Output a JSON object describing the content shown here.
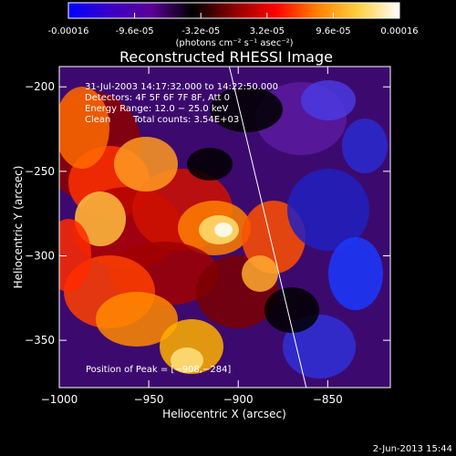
{
  "colorbar": {
    "ticks": [
      "-0.00016",
      "-9.6e-05",
      "-3.2e-05",
      "3.2e-05",
      "9.6e-05",
      "0.00016"
    ],
    "min": -0.00016,
    "max": 0.00016,
    "units": "(photons cm⁻² s⁻¹ asec⁻²)",
    "palette": [
      "#0000ff",
      "#3a00c8",
      "#5a0096",
      "#000000",
      "#8c0000",
      "#ff0000",
      "#ff7f00",
      "#ffd040",
      "#ffffff"
    ]
  },
  "chart_data": {
    "type": "heatmap",
    "title": "Reconstructed RHESSI Image",
    "xlabel": "Heliocentric X (arcsec)",
    "ylabel": "Heliocentric Y (arcsec)",
    "xlim": [
      -1000,
      -815
    ],
    "ylim": [
      -378,
      -188
    ],
    "xticks": [
      -1000,
      -950,
      -900,
      -850
    ],
    "yticks": [
      -200,
      -250,
      -300,
      -350
    ],
    "xtick_labels": [
      "−1000",
      "−950",
      "−900",
      "−850"
    ],
    "ytick_labels": [
      "−200",
      "−250",
      "−300",
      "−350"
    ],
    "annotations": {
      "time_range": "31-Jul-2003 14:17:32.000 to 14:22:50.000",
      "detectors": "Detectors: 4F 5F 6F 7F 8F, Att 0",
      "energy": "Energy Range: 12.0 − 25.0 keV",
      "method": "Clean",
      "counts": "Total counts: 3.54E+03",
      "peak": "Position of Peak = [−908,−284]"
    },
    "peak": [
      -908,
      -284
    ],
    "limb": [
      [
        -905,
        -188
      ],
      [
        -862,
        -378
      ]
    ]
  },
  "footer": {
    "date": "2-Jun-2013 15:44"
  }
}
